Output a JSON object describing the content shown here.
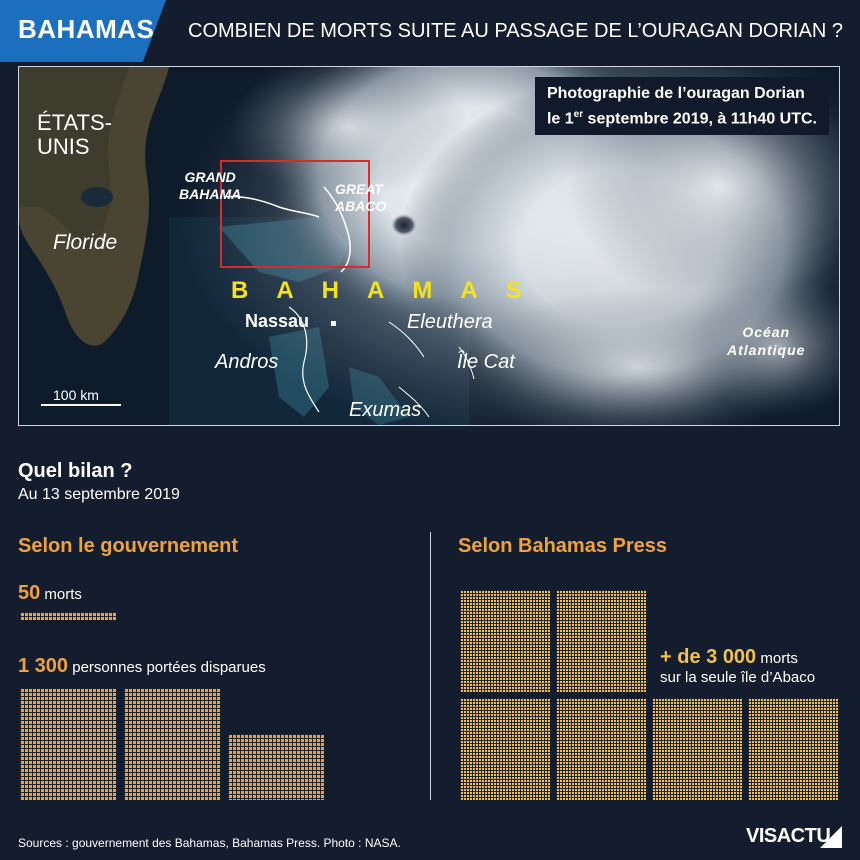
{
  "header": {
    "tag": "BAHAMAS",
    "headline": "COMBIEN DE MORTS SUITE AU PASSAGE DE L’OURAGAN DORIAN ?"
  },
  "map": {
    "caption_line1": "Photographie de l’ouragan Dorian",
    "caption_line2_pre": "le 1",
    "caption_line2_sup": "er",
    "caption_line2_post": " septembre 2019, à 11h40 UTC.",
    "label_usa_1": "ÉTATS-",
    "label_usa_2": "UNIS",
    "label_florida": "Floride",
    "label_grand_bahama_1": "GRAND",
    "label_grand_bahama_2": "BAHAMA",
    "label_great_abaco_1": "GREAT",
    "label_great_abaco_2": "ABACO",
    "label_bahamas": "BAHAMAS",
    "label_nassau": "Nassau",
    "label_eleuthera": "Eleuthera",
    "label_andros": "Andros",
    "label_cat": "Île Cat",
    "label_exumas": "Exumas",
    "label_ocean_1": "Océan",
    "label_ocean_2": "Atlantique",
    "scale": "100 km"
  },
  "summary": {
    "title": "Quel bilan ?",
    "date": "Au 13 septembre 2019"
  },
  "government": {
    "heading": "Selon le gouvernement",
    "deaths_value": "50",
    "deaths_label": "morts",
    "missing_value": "1 300",
    "missing_label": "personnes portées disparues"
  },
  "press": {
    "heading": "Selon Bahamas Press",
    "deaths_value": "+ de 3 000",
    "deaths_label": "morts",
    "deaths_note": "sur la seule île d’Abaco"
  },
  "footer": {
    "sources": "Sources : gouvernement des Bahamas, Bahamas Press.  Photo : NASA.",
    "logo": "VISACTU"
  },
  "colors": {
    "background": "#141d2e",
    "accent_blue": "#1c6fbf",
    "government_orange": "#f0a23a",
    "press_yellow": "#f2c14a",
    "bahamas_label_yellow": "#f6e21b"
  }
}
